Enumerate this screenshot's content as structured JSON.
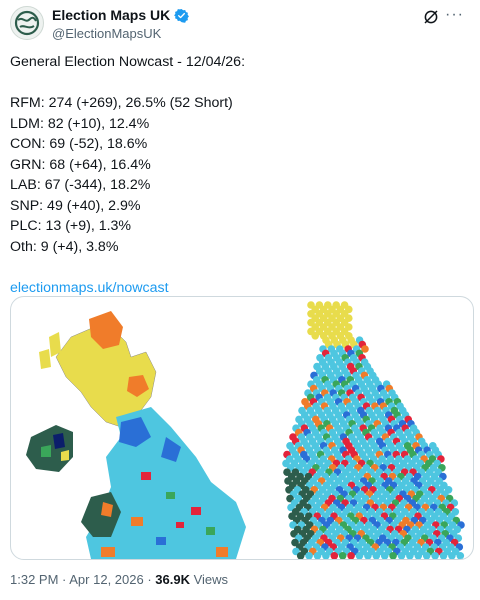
{
  "account": {
    "display_name": "Election Maps UK",
    "handle": "@ElectionMapsUK",
    "avatar_icon": "globe-logo-icon",
    "verified_icon": "verified-badge-icon",
    "verified_color": "#1d9bf0"
  },
  "actions": {
    "grok_icon": "grok-icon",
    "more_label": "···"
  },
  "tweet": {
    "heading": "General Election Nowcast - 12/04/26:",
    "lines": [
      "RFM: 274 (+269), 26.5% (52 Short)",
      "LDM: 82 (+10), 12.4%",
      "CON: 69 (-52), 18.6%",
      "GRN: 68 (+64), 16.4%",
      "LAB: 67 (-344), 18.2%",
      "SNP: 49 (+40), 2.9%",
      "PLC: 13 (+9), 1.3%",
      "Oth: 9 (+4), 3.8%"
    ],
    "link": "electionmaps.uk/nowcast",
    "link_color": "#1d9bf0"
  },
  "media": {
    "image_description_icons": [
      "uk-geographic-map",
      "uk-hexagon-cartogram"
    ],
    "party_colors": {
      "RFM": "#4ec6e0",
      "LDM": "#f07c2a",
      "CON": "#2a6fd6",
      "GRN": "#3aa65a",
      "LAB": "#e3243b",
      "SNP": "#e8dc4c",
      "PLC": "#2d5d4c"
    }
  },
  "footer": {
    "time": "1:32 PM",
    "separator": " · ",
    "date": "Apr 12, 2026",
    "views_count": "36.9K",
    "views_label": " Views"
  }
}
